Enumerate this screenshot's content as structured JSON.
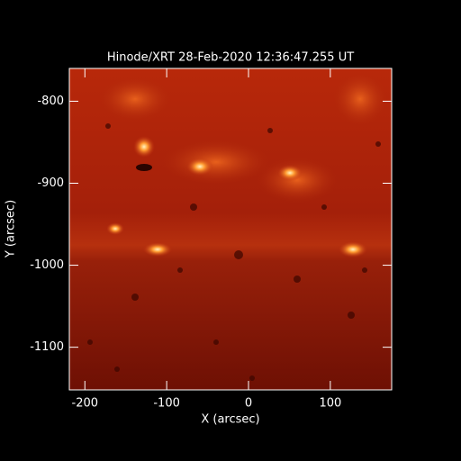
{
  "chart_data": {
    "type": "image",
    "title": "Hinode/XRT 28-Feb-2020 12:36:47.255 UT",
    "x_label": "X (arcsec)",
    "y_label": "Y (arcsec)",
    "xlim": [
      -219,
      175
    ],
    "ylim": [
      -1152,
      -760
    ],
    "xticks": [
      -200,
      -100,
      0,
      100
    ],
    "yticks": [
      -1100,
      -1000,
      -900,
      -800
    ]
  }
}
